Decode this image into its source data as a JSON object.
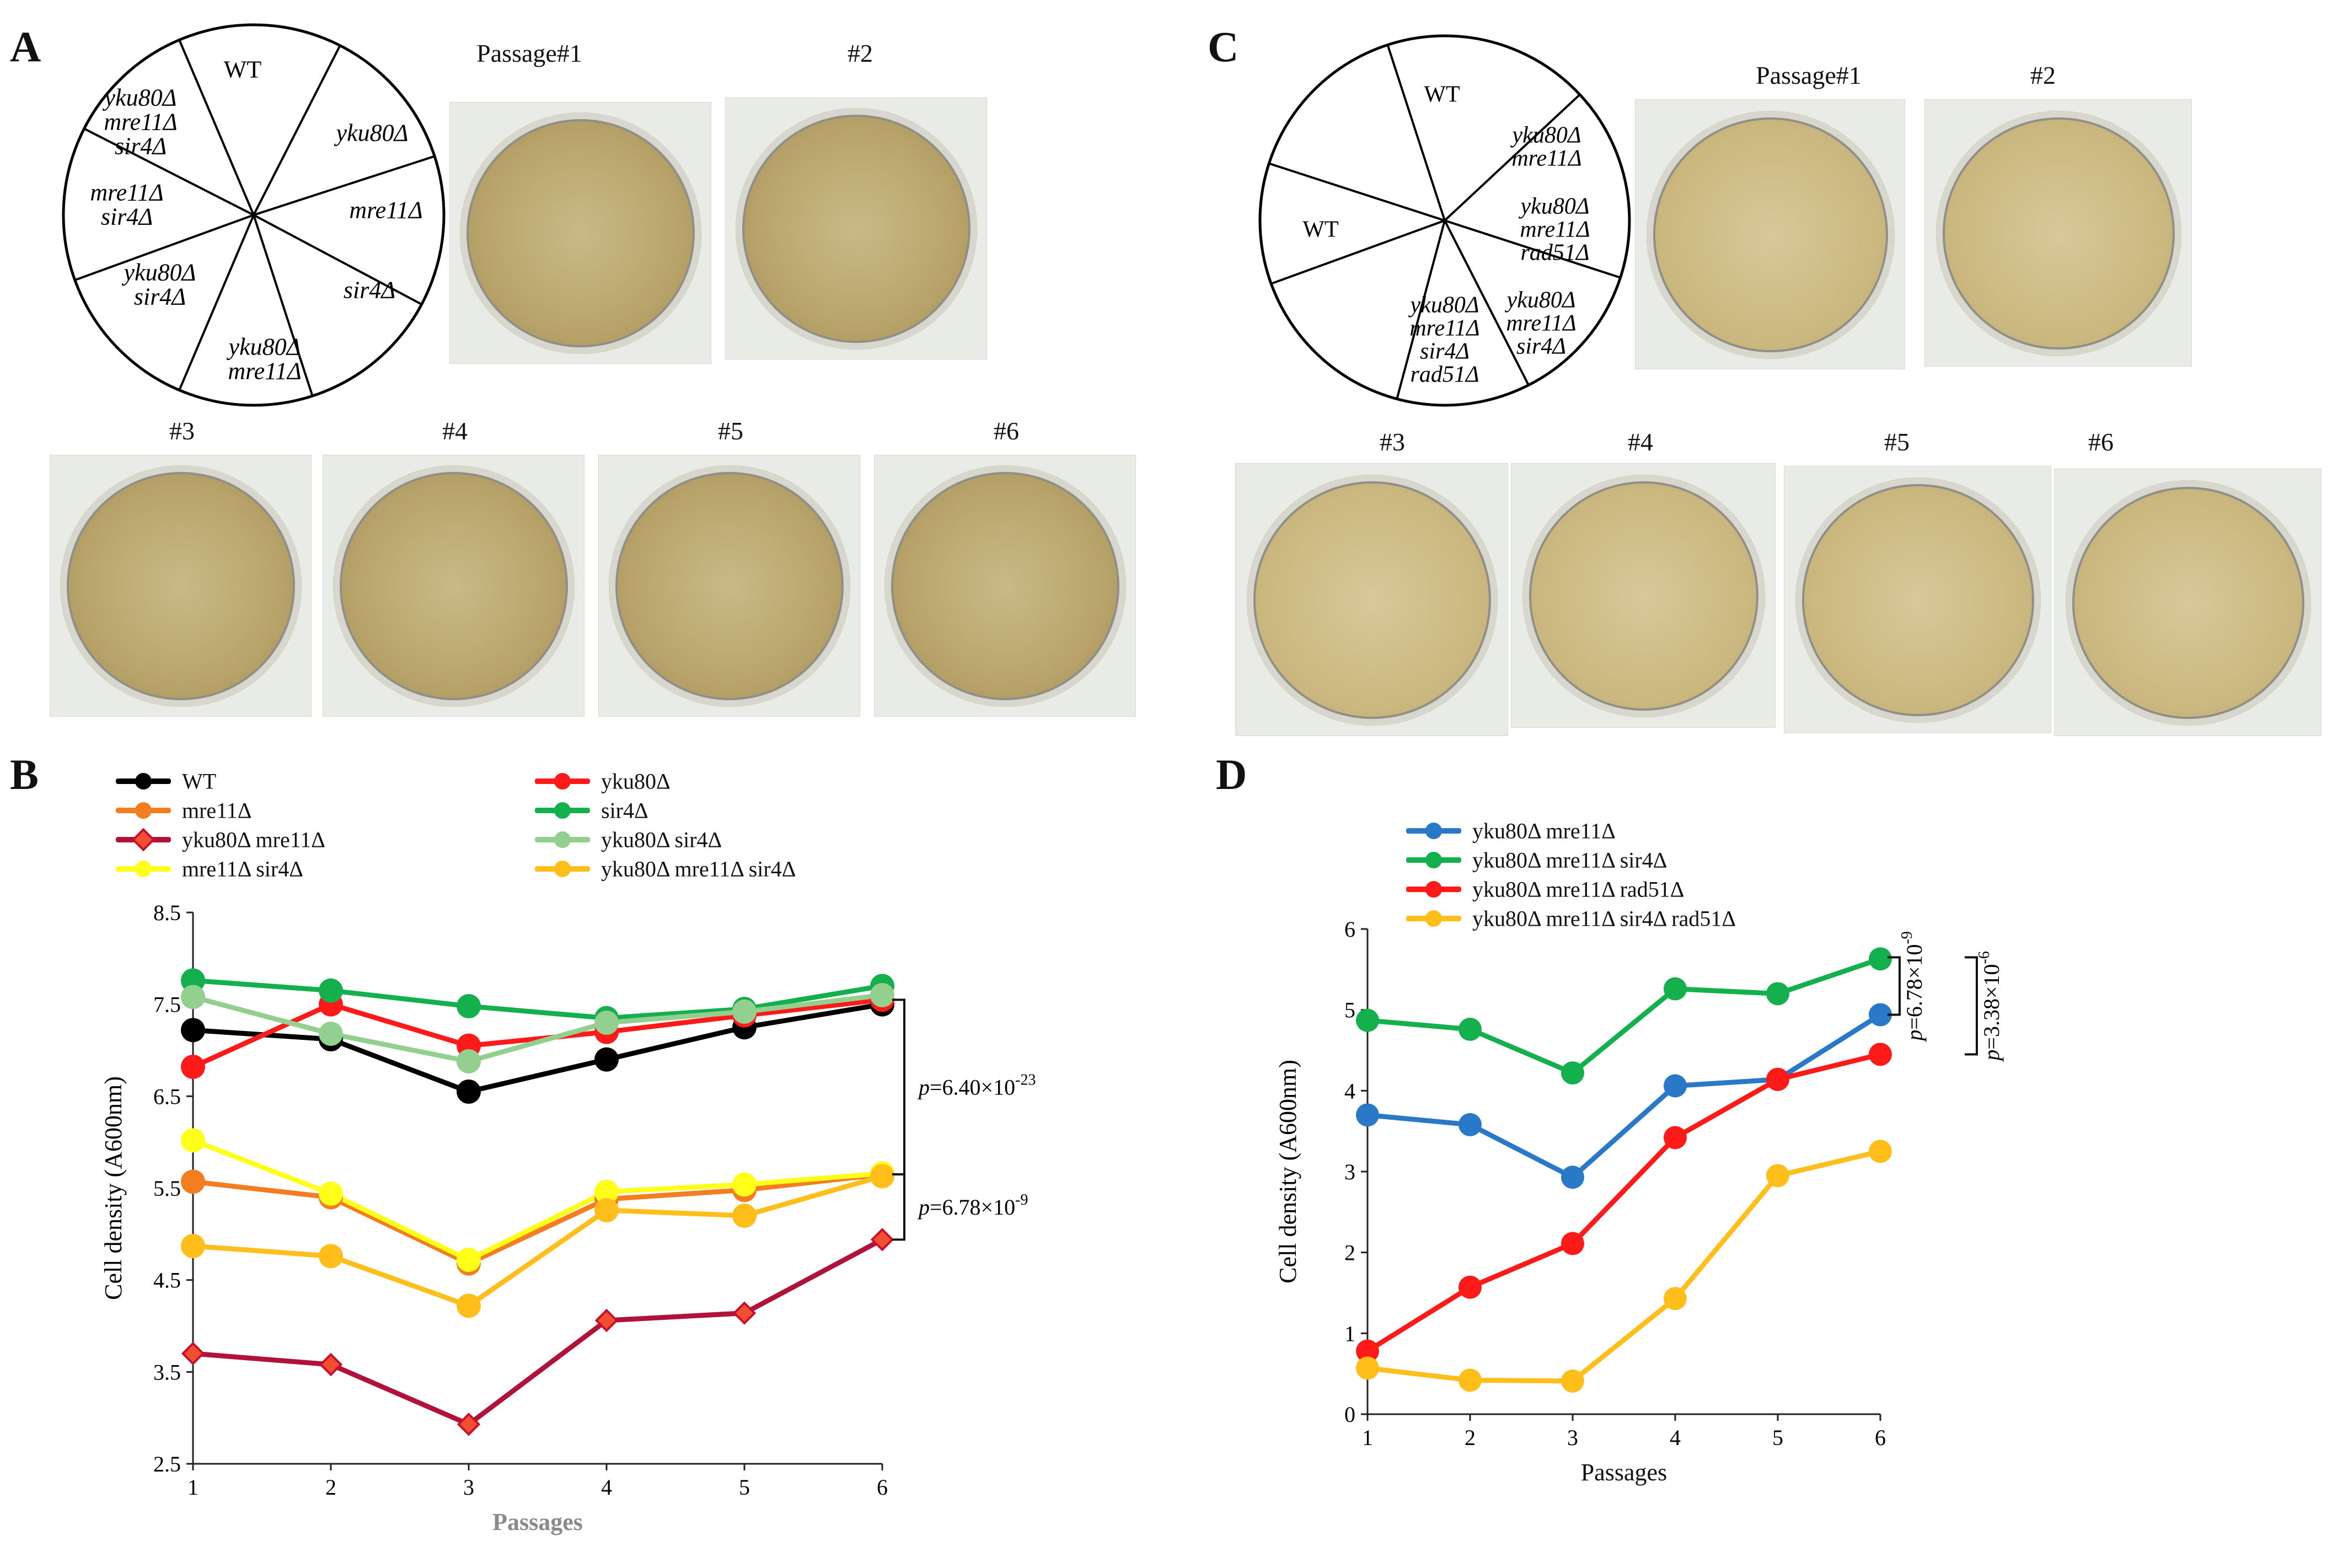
{
  "panels": {
    "A": "A",
    "B": "B",
    "C": "C",
    "D": "D"
  },
  "panel_a": {
    "wheel_labels": [
      "WT",
      "yku80Δ",
      "mre11Δ",
      "sir4Δ",
      "yku80Δ\nmre11Δ",
      "yku80Δ\nsir4Δ",
      "mre11Δ\nsir4Δ",
      "yku80Δ\nmre11Δ\nsir4Δ"
    ],
    "plates": [
      "Passage#1",
      "#2",
      "#3",
      "#4",
      "#5",
      "#6"
    ]
  },
  "panel_c": {
    "wheel_labels": [
      "WT",
      "yku80Δ\nmre11Δ",
      "yku80Δ\nmre11Δ\nrad51Δ",
      "yku80Δ\nmre11Δ\nsir4Δ",
      "yku80Δ\nmre11Δ\nsir4Δ\nrad51Δ",
      "WT"
    ],
    "plates": [
      "Passage#1",
      "#2",
      "#3",
      "#4",
      "#5",
      "#6"
    ]
  },
  "chart_data": [
    {
      "panel": "B",
      "type": "line",
      "xlabel": "Passages",
      "ylabel": "Cell density (A600nm)",
      "x": [
        1,
        2,
        3,
        4,
        5,
        6
      ],
      "ylim": [
        2.5,
        8.5
      ],
      "yticks": [
        "2.5",
        "3.5",
        "4.5",
        "5.5",
        "6.5",
        "7.5",
        "8.5"
      ],
      "xticks": [
        "1",
        "2",
        "3",
        "4",
        "5",
        "6"
      ],
      "series": [
        {
          "name": "WT",
          "color": "#000000",
          "marker": "circle",
          "values": [
            7.22,
            7.12,
            6.55,
            6.9,
            7.25,
            7.5
          ]
        },
        {
          "name": "yku80Δ",
          "color": "#ff1a1a",
          "marker": "circle",
          "values": [
            6.82,
            7.5,
            7.05,
            7.2,
            7.38,
            7.55
          ]
        },
        {
          "name": "mre11Δ",
          "color": "#f47d20",
          "marker": "circle",
          "values": [
            5.57,
            5.4,
            4.68,
            5.38,
            5.48,
            5.65
          ]
        },
        {
          "name": "sir4Δ",
          "color": "#15b04e",
          "marker": "circle",
          "values": [
            7.76,
            7.65,
            7.48,
            7.35,
            7.45,
            7.7
          ]
        },
        {
          "name": "yku80Δ mre11Δ",
          "color": "#b0123a",
          "marker": "diamond",
          "values": [
            3.7,
            3.58,
            2.93,
            4.06,
            4.14,
            4.94
          ]
        },
        {
          "name": "yku80Δ sir4Δ",
          "color": "#93cf8f",
          "marker": "circle",
          "values": [
            7.58,
            7.18,
            6.88,
            7.3,
            7.42,
            7.6
          ]
        },
        {
          "name": "mre11Δ sir4Δ",
          "color": "#ffff1a",
          "marker": "circle",
          "values": [
            6.02,
            5.44,
            4.72,
            5.46,
            5.54,
            5.66
          ]
        },
        {
          "name": "yku80Δ mre11Δ sir4Δ",
          "color": "#ffbe1a",
          "marker": "circle",
          "values": [
            4.87,
            4.76,
            4.22,
            5.26,
            5.2,
            5.63
          ]
        }
      ],
      "annotations": [
        "p=6.40×10",
        "-23",
        "p=6.78×10",
        "-9"
      ]
    },
    {
      "panel": "D",
      "type": "line",
      "xlabel": "Passages",
      "ylabel": "Cell density (A600nm)",
      "x": [
        1,
        2,
        3,
        4,
        5,
        6
      ],
      "ylim": [
        0,
        6
      ],
      "yticks": [
        "0",
        "1",
        "2",
        "3",
        "4",
        "5",
        "6"
      ],
      "xticks": [
        "1",
        "2",
        "3",
        "4",
        "5",
        "6"
      ],
      "series": [
        {
          "name": "yku80Δ mre11Δ",
          "color": "#2a78c8",
          "marker": "circle",
          "values": [
            3.7,
            3.58,
            2.93,
            4.06,
            4.14,
            4.94
          ]
        },
        {
          "name": "yku80Δ mre11Δ sir4Δ",
          "color": "#15b04e",
          "marker": "circle",
          "values": [
            4.87,
            4.76,
            4.22,
            5.26,
            5.2,
            5.63
          ]
        },
        {
          "name": "yku80Δ mre11Δ rad51Δ",
          "color": "#ff1a1a",
          "marker": "circle",
          "values": [
            0.78,
            1.57,
            2.11,
            3.42,
            4.14,
            4.45
          ]
        },
        {
          "name": "yku80Δ mre11Δ sir4Δ rad51Δ",
          "color": "#ffbe1a",
          "marker": "circle",
          "values": [
            0.57,
            0.42,
            0.41,
            1.43,
            2.95,
            3.25
          ]
        }
      ],
      "annotations": [
        "p=6.78×10",
        "-9",
        "p=3.38×10",
        "-6"
      ]
    }
  ]
}
